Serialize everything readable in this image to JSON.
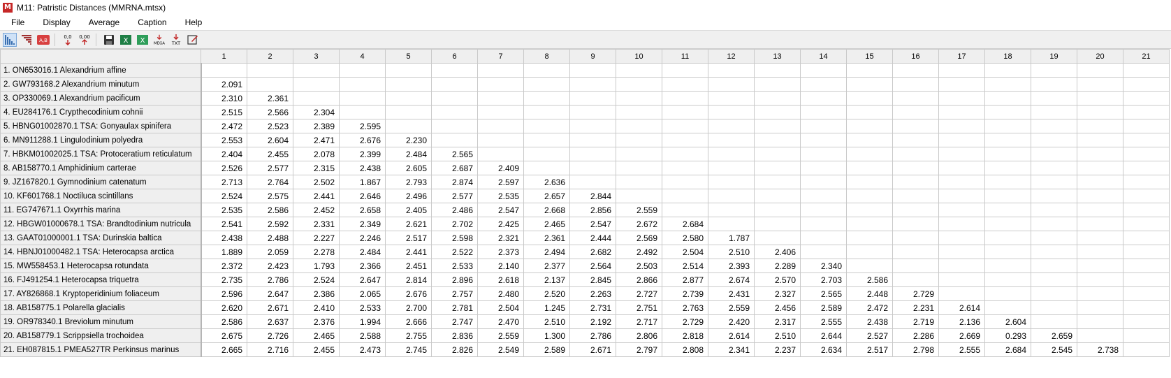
{
  "window": {
    "title": "M11: Patristic Distances (MMRNA.mtsx)",
    "icon": "mega-app-icon"
  },
  "menu": [
    "File",
    "Display",
    "Average",
    "Caption",
    "Help"
  ],
  "toolbar": {
    "buttons": [
      {
        "name": "lower-left-matrix-icon",
        "glyph": "◣"
      },
      {
        "name": "upper-right-matrix-icon",
        "glyph": "◥"
      },
      {
        "name": "name-toggle-icon",
        "glyph": "A,B"
      },
      {
        "name": "decrease-precision-icon",
        "glyph": "0,0"
      },
      {
        "name": "increase-precision-icon",
        "glyph": "0,00"
      },
      {
        "name": "save-icon",
        "glyph": "💾"
      },
      {
        "name": "export-excel-icon",
        "glyph": "X"
      },
      {
        "name": "export-excel-alt-icon",
        "glyph": "X"
      },
      {
        "name": "export-mega-icon",
        "glyph": "MEGA"
      },
      {
        "name": "export-txt-icon",
        "glyph": "TXT"
      },
      {
        "name": "edit-caption-icon",
        "glyph": "✎"
      }
    ]
  },
  "grid": {
    "columns": [
      "1",
      "2",
      "3",
      "4",
      "5",
      "6",
      "7",
      "8",
      "9",
      "10",
      "11",
      "12",
      "13",
      "14",
      "15",
      "16",
      "17",
      "18",
      "19",
      "20",
      "21"
    ],
    "selected_cell": {
      "row": 1,
      "col": 1
    },
    "rows": [
      {
        "label": "1. ON653016.1 Alexandrium affine",
        "values": []
      },
      {
        "label": "2. GW793168.2 Alexandrium minutum",
        "values": [
          "2.091"
        ]
      },
      {
        "label": "3. OP330069.1 Alexandrium pacificum",
        "values": [
          "2.310",
          "2.361"
        ]
      },
      {
        "label": "4. EU284176.1 Crypthecodinium cohnii",
        "values": [
          "2.515",
          "2.566",
          "2.304"
        ]
      },
      {
        "label": "5. HBNG01002870.1 TSA: Gonyaulax spinifera",
        "values": [
          "2.472",
          "2.523",
          "2.389",
          "2.595"
        ]
      },
      {
        "label": "6. MN911288.1 Lingulodinium polyedra",
        "values": [
          "2.553",
          "2.604",
          "2.471",
          "2.676",
          "2.230"
        ]
      },
      {
        "label": "7. HBKM01002025.1 TSA: Protoceratium reticulatum",
        "values": [
          "2.404",
          "2.455",
          "2.078",
          "2.399",
          "2.484",
          "2.565"
        ]
      },
      {
        "label": "8. AB158770.1 Amphidinium carterae",
        "values": [
          "2.526",
          "2.577",
          "2.315",
          "2.438",
          "2.605",
          "2.687",
          "2.409"
        ]
      },
      {
        "label": "9. JZ167820.1 Gymnodinium catenatum",
        "values": [
          "2.713",
          "2.764",
          "2.502",
          "1.867",
          "2.793",
          "2.874",
          "2.597",
          "2.636"
        ]
      },
      {
        "label": "10. KF601768.1 Noctiluca scintillans",
        "values": [
          "2.524",
          "2.575",
          "2.441",
          "2.646",
          "2.496",
          "2.577",
          "2.535",
          "2.657",
          "2.844"
        ]
      },
      {
        "label": "11. EG747671.1 Oxyrrhis marina",
        "values": [
          "2.535",
          "2.586",
          "2.452",
          "2.658",
          "2.405",
          "2.486",
          "2.547",
          "2.668",
          "2.856",
          "2.559"
        ]
      },
      {
        "label": "12. HBGW01000678.1 TSA: Brandtodinium nutricula",
        "values": [
          "2.541",
          "2.592",
          "2.331",
          "2.349",
          "2.621",
          "2.702",
          "2.425",
          "2.465",
          "2.547",
          "2.672",
          "2.684"
        ]
      },
      {
        "label": "13. GAAT01000001.1 TSA: Durinskia baltica",
        "values": [
          "2.438",
          "2.488",
          "2.227",
          "2.246",
          "2.517",
          "2.598",
          "2.321",
          "2.361",
          "2.444",
          "2.569",
          "2.580",
          "1.787"
        ]
      },
      {
        "label": "14. HBNJ01000482.1 TSA: Heterocapsa arctica",
        "values": [
          "1.889",
          "2.059",
          "2.278",
          "2.484",
          "2.441",
          "2.522",
          "2.373",
          "2.494",
          "2.682",
          "2.492",
          "2.504",
          "2.510",
          "2.406"
        ]
      },
      {
        "label": "15. MW558453.1 Heterocapsa rotundata",
        "values": [
          "2.372",
          "2.423",
          "1.793",
          "2.366",
          "2.451",
          "2.533",
          "2.140",
          "2.377",
          "2.564",
          "2.503",
          "2.514",
          "2.393",
          "2.289",
          "2.340"
        ]
      },
      {
        "label": "16. FJ491254.1 Heterocapsa triquetra",
        "values": [
          "2.735",
          "2.786",
          "2.524",
          "2.647",
          "2.814",
          "2.896",
          "2.618",
          "2.137",
          "2.845",
          "2.866",
          "2.877",
          "2.674",
          "2.570",
          "2.703",
          "2.586"
        ]
      },
      {
        "label": "17. AY826868.1 Kryptoperidinium foliaceum",
        "values": [
          "2.596",
          "2.647",
          "2.386",
          "2.065",
          "2.676",
          "2.757",
          "2.480",
          "2.520",
          "2.263",
          "2.727",
          "2.739",
          "2.431",
          "2.327",
          "2.565",
          "2.448",
          "2.729"
        ]
      },
      {
        "label": "18. AB158775.1 Polarella glacialis",
        "values": [
          "2.620",
          "2.671",
          "2.410",
          "2.533",
          "2.700",
          "2.781",
          "2.504",
          "1.245",
          "2.731",
          "2.751",
          "2.763",
          "2.559",
          "2.456",
          "2.589",
          "2.472",
          "2.231",
          "2.614"
        ]
      },
      {
        "label": "19. OR978340.1 Breviolum minutum",
        "values": [
          "2.586",
          "2.637",
          "2.376",
          "1.994",
          "2.666",
          "2.747",
          "2.470",
          "2.510",
          "2.192",
          "2.717",
          "2.729",
          "2.420",
          "2.317",
          "2.555",
          "2.438",
          "2.719",
          "2.136",
          "2.604"
        ]
      },
      {
        "label": "20. AB158779.1 Scrippsiella trochoidea",
        "values": [
          "2.675",
          "2.726",
          "2.465",
          "2.588",
          "2.755",
          "2.836",
          "2.559",
          "1.300",
          "2.786",
          "2.806",
          "2.818",
          "2.614",
          "2.510",
          "2.644",
          "2.527",
          "2.286",
          "2.669",
          "0.293",
          "2.659"
        ]
      },
      {
        "label": "21. EH087815.1 PMEA527TR Perkinsus marinus",
        "values": [
          "2.665",
          "2.716",
          "2.455",
          "2.473",
          "2.745",
          "2.826",
          "2.549",
          "2.589",
          "2.671",
          "2.797",
          "2.808",
          "2.341",
          "2.237",
          "2.634",
          "2.517",
          "2.798",
          "2.555",
          "2.684",
          "2.545",
          "2.738"
        ]
      }
    ]
  }
}
